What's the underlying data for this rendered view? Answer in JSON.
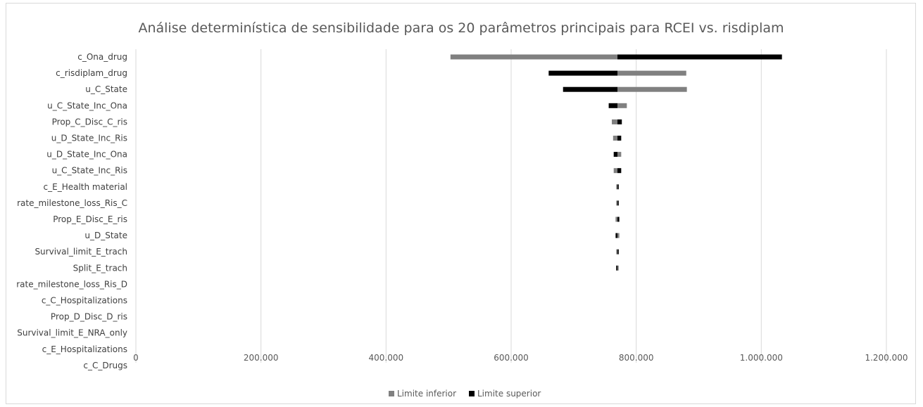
{
  "chart_data": {
    "type": "bar",
    "orientation": "horizontal",
    "title": "Análise determinística de sensibilidade para os 20 parâmetros principais para RCEI vs. risdiplam",
    "base": 770000,
    "xlim": [
      0,
      1200000
    ],
    "xticks": [
      0,
      200000,
      400000,
      600000,
      800000,
      1000000,
      1200000
    ],
    "xtick_labels": [
      "0",
      "200.000",
      "400.000",
      "600.000",
      "800.000",
      "1.000.000",
      "1.200.000"
    ],
    "grid": true,
    "legend": "bottom",
    "categories": [
      "c_Ona_drug",
      "c_risdiplam_drug",
      "u_C_State",
      "u_C_State_Inc_Ona",
      "Prop_C_Disc_C_ris",
      "u_D_State_Inc_Ris",
      "u_D_State_Inc_Ona",
      "u_C_State_Inc_Ris",
      "c_E_Health material",
      "rate_milestone_loss_Ris_C",
      "Prop_E_Disc_E_ris",
      "u_D_State",
      "Survival_limit_E_trach",
      "Split_E_trach",
      "rate_milestone_loss_Ris_D",
      "c_C_Hospitalizations",
      "Prop_D_Disc_D_ris",
      "Survival_limit_E_NRA_only",
      "c_E_Hospitalizations",
      "c_C_Drugs"
    ],
    "series": [
      {
        "name": "Limite inferior",
        "color": "#808080",
        "values": [
          503000,
          880000,
          881000,
          785000,
          761000,
          763000,
          776000,
          764000,
          768000,
          768000,
          767000,
          773000,
          768000,
          772000,
          770000,
          770000,
          770000,
          770000,
          770000,
          770000
        ]
      },
      {
        "name": "Limite superior",
        "color": "#000000",
        "values": [
          1033000,
          660000,
          683000,
          756000,
          777000,
          776000,
          764000,
          776000,
          772000,
          772000,
          773000,
          767000,
          772000,
          768000,
          770000,
          770000,
          770000,
          770000,
          770000,
          770000
        ]
      }
    ]
  }
}
